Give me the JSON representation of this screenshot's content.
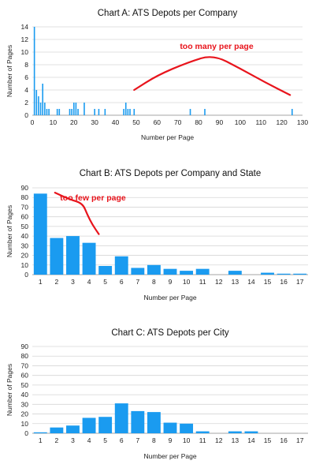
{
  "chart_data": [
    {
      "type": "bar",
      "title": "Chart A:  ATS Depots per Company",
      "xlabel": "Number per Page",
      "ylabel": "Number of Pages",
      "xlim": [
        0,
        130
      ],
      "ylim": [
        0,
        14
      ],
      "xticks": [
        0,
        10,
        20,
        30,
        40,
        50,
        60,
        70,
        80,
        90,
        100,
        110,
        120,
        130
      ],
      "yticks": [
        0,
        2,
        4,
        6,
        8,
        10,
        12,
        14
      ],
      "grid": true,
      "color": "#1a9bf0",
      "x": [
        1,
        2,
        3,
        4,
        5,
        6,
        7,
        8,
        12,
        13,
        18,
        19,
        20,
        21,
        22,
        25,
        30,
        32,
        35,
        44,
        45,
        46,
        47,
        49,
        76,
        83,
        125
      ],
      "values": [
        14,
        4,
        3,
        2,
        5,
        2,
        1,
        1,
        1,
        1,
        1,
        1,
        2,
        2,
        1,
        2,
        1,
        1,
        1,
        1,
        2,
        1,
        1,
        1,
        1,
        1,
        1
      ],
      "annotation": {
        "text": "too many per page",
        "curve": [
          [
            49,
            4.0
          ],
          [
            60,
            6.3
          ],
          [
            75,
            8.4
          ],
          [
            87,
            9.6
          ],
          [
            100,
            7.4
          ],
          [
            112,
            5.2
          ],
          [
            124,
            3.2
          ]
        ]
      }
    },
    {
      "type": "bar",
      "title": "Chart B:  ATS Depots per Company and State",
      "xlabel": "Number per Page",
      "ylabel": "Number of Pages",
      "categories": [
        "1",
        "2",
        "3",
        "4",
        "5",
        "6",
        "7",
        "8",
        "9",
        "10",
        "11",
        "12",
        "13",
        "14",
        "15",
        "16",
        "17"
      ],
      "values": [
        84,
        38,
        40,
        33,
        9,
        19,
        7,
        10,
        6,
        4,
        6,
        0,
        4,
        0,
        2,
        1,
        1
      ],
      "ylim": [
        0,
        90
      ],
      "yticks": [
        0,
        10,
        20,
        30,
        40,
        50,
        60,
        70,
        80,
        90
      ],
      "grid": true,
      "color": "#1a9bf0",
      "annotation": {
        "text": "too few per page",
        "curve": [
          [
            1.9,
            85
          ],
          [
            2.8,
            78
          ],
          [
            3.6,
            74
          ],
          [
            3.9,
            62
          ],
          [
            4.2,
            52
          ],
          [
            4.6,
            42
          ]
        ]
      }
    },
    {
      "type": "bar",
      "title": "Chart C:  ATS Depots per City",
      "xlabel": "Number per Page",
      "ylabel": "Number of Pages",
      "categories": [
        "1",
        "2",
        "3",
        "4",
        "5",
        "6",
        "7",
        "8",
        "9",
        "10",
        "11",
        "12",
        "13",
        "14",
        "15",
        "16",
        "17"
      ],
      "values": [
        1,
        6,
        8,
        16,
        17,
        31,
        23,
        22,
        11,
        10,
        2,
        0,
        2,
        2,
        0,
        0,
        0
      ],
      "ylim": [
        0,
        90
      ],
      "yticks": [
        0,
        10,
        20,
        30,
        40,
        50,
        60,
        70,
        80,
        90
      ],
      "grid": true,
      "color": "#1a9bf0"
    }
  ]
}
